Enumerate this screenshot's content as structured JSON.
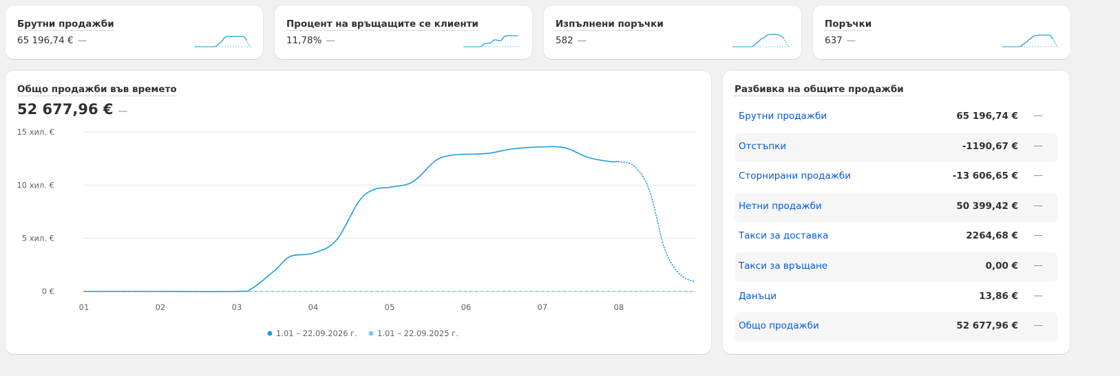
{
  "kpis": [
    {
      "title": "Брутни продажби",
      "value": "65 196,74 €",
      "change": "—"
    },
    {
      "title": "Процент на връщащите се клиенти",
      "value": "11,78%",
      "change": "—"
    },
    {
      "title": "Изпълнени поръчки",
      "value": "582",
      "change": "—"
    },
    {
      "title": "Поръчки",
      "value": "637",
      "change": "—"
    }
  ],
  "chart_data": {
    "type": "line",
    "title": "Общо продажби във времето",
    "total": "52 677,96 €",
    "change": "—",
    "x": [
      1,
      2,
      3,
      3.2,
      3.5,
      3.7,
      4,
      4.3,
      4.6,
      4.8,
      5,
      5.3,
      5.6,
      5.8,
      6,
      6.3,
      6.6,
      7,
      7.3,
      7.6,
      7.9,
      8,
      8.2,
      8.4,
      8.6,
      8.8,
      9
    ],
    "xlim": [
      1,
      9
    ],
    "xticks": [
      {
        "value": 1,
        "label": "01"
      },
      {
        "value": 2,
        "label": "02"
      },
      {
        "value": 3,
        "label": "03"
      },
      {
        "value": 4,
        "label": "04"
      },
      {
        "value": 5,
        "label": "05"
      },
      {
        "value": 6,
        "label": "06"
      },
      {
        "value": 7,
        "label": "07"
      },
      {
        "value": 8,
        "label": "08"
      }
    ],
    "ylim": [
      0,
      15000
    ],
    "yticks": [
      {
        "value": 0,
        "label": "0 €"
      },
      {
        "value": 5000,
        "label": "5 хил. €"
      },
      {
        "value": 10000,
        "label": "10 хил. €"
      },
      {
        "value": 15000,
        "label": "15 хил. €"
      }
    ],
    "grid": true,
    "series": [
      {
        "name": "1.01 – 22.09.2026 г.",
        "color": "#1a9ee0",
        "dotted_from_index": 21,
        "values": [
          0,
          0,
          0,
          300,
          2000,
          3300,
          3600,
          4800,
          8500,
          9600,
          9800,
          10300,
          12300,
          12800,
          12900,
          13000,
          13400,
          13600,
          13500,
          12600,
          12200,
          12200,
          11800,
          9500,
          4000,
          1600,
          900
        ]
      },
      {
        "name": "1.01 – 22.09.2025 г.",
        "color": "#7fc8ef",
        "dashed": true,
        "values": [
          0,
          0,
          0,
          0,
          0,
          0,
          0,
          0,
          0,
          0,
          0,
          0,
          0,
          0,
          0,
          0,
          0,
          0,
          0,
          0,
          0,
          0,
          0,
          0,
          0,
          0,
          0
        ]
      }
    ]
  },
  "breakdown": {
    "title": "Разбивка на общите продажби",
    "rows": [
      {
        "label": "Брутни продажби",
        "value": "65 196,74 €",
        "change": "—"
      },
      {
        "label": "Отстъпки",
        "value": "-1190,67 €",
        "change": "—"
      },
      {
        "label": "Сторнирани продажби",
        "value": "-13 606,65 €",
        "change": "—"
      },
      {
        "label": "Нетни продажби",
        "value": "50 399,42 €",
        "change": "—"
      },
      {
        "label": "Такси за доставка",
        "value": "2264,68 €",
        "change": "—"
      },
      {
        "label": "Такси за връщане",
        "value": "0,00 €",
        "change": "—"
      },
      {
        "label": "Данъци",
        "value": "13,86 €",
        "change": "—"
      },
      {
        "label": "Общо продажби",
        "value": "52 677,96 €",
        "change": "—"
      }
    ]
  }
}
